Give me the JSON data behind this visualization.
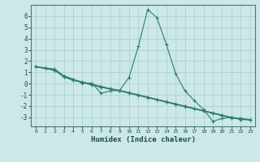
{
  "xlabel": "Humidex (Indice chaleur)",
  "x_values": [
    0,
    1,
    2,
    3,
    4,
    5,
    6,
    7,
    8,
    9,
    10,
    11,
    12,
    13,
    14,
    15,
    16,
    17,
    18,
    19,
    20,
    21,
    22,
    23
  ],
  "series1": [
    1.5,
    1.4,
    1.3,
    0.7,
    0.4,
    0.05,
    0.05,
    -0.85,
    -0.65,
    -0.6,
    0.55,
    3.3,
    6.6,
    5.85,
    3.5,
    0.9,
    -0.65,
    -1.5,
    -2.3,
    -3.35,
    -3.1,
    -3.0,
    -3.2,
    -3.2
  ],
  "series2": [
    1.5,
    1.35,
    1.2,
    0.65,
    0.35,
    0.15,
    -0.05,
    -0.25,
    -0.45,
    -0.6,
    -0.8,
    -1.0,
    -1.2,
    -1.4,
    -1.6,
    -1.8,
    -2.0,
    -2.2,
    -2.4,
    -2.6,
    -2.8,
    -3.0,
    -3.1,
    -3.2
  ],
  "series3": [
    1.5,
    1.35,
    1.2,
    0.62,
    0.32,
    0.12,
    -0.08,
    -0.28,
    -0.47,
    -0.62,
    -0.82,
    -1.02,
    -1.22,
    -1.42,
    -1.62,
    -1.82,
    -2.02,
    -2.22,
    -2.42,
    -2.62,
    -2.82,
    -3.02,
    -3.12,
    -3.22
  ],
  "series4": [
    1.5,
    1.35,
    1.2,
    0.6,
    0.3,
    0.1,
    -0.12,
    -0.32,
    -0.5,
    -0.65,
    -0.85,
    -1.05,
    -1.25,
    -1.45,
    -1.65,
    -1.85,
    -2.05,
    -2.25,
    -2.45,
    -2.65,
    -2.85,
    -3.05,
    -3.15,
    -3.25
  ],
  "line_color": "#2d7d6e",
  "bg_color": "#cce8e8",
  "grid_color": "#aacccc",
  "ylim": [
    -3.8,
    7.0
  ],
  "xlim": [
    -0.5,
    23.5
  ],
  "yticks": [
    -3,
    -2,
    -1,
    0,
    1,
    2,
    3,
    4,
    5,
    6
  ],
  "xticks": [
    0,
    1,
    2,
    3,
    4,
    5,
    6,
    7,
    8,
    9,
    10,
    11,
    12,
    13,
    14,
    15,
    16,
    17,
    18,
    19,
    20,
    21,
    22,
    23
  ]
}
